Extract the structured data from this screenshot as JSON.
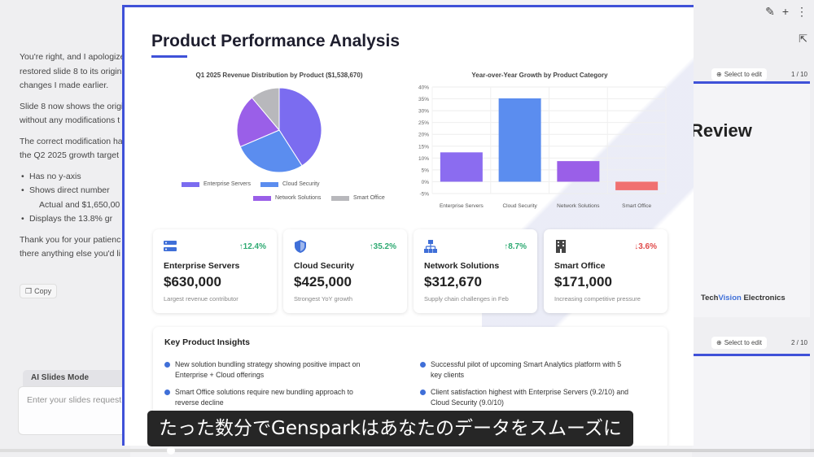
{
  "chat": {
    "lines": [
      "You're right, and I apologize",
      "restored slide 8 to its origin",
      "changes I made earlier.",
      "Slide 8 now shows the origi",
      "without any modifications t",
      "The correct modification ha",
      "the Q2 2025 growth target"
    ],
    "bullets": [
      "Has no y-axis",
      "Shows direct number",
      "Actual and $1,650,00",
      "Displays the 13.8% gr"
    ],
    "lines2": [
      "Thank you for your patienc",
      "there anything else you'd li"
    ],
    "copy_label": "Copy",
    "mode_label": "AI Slides Mode",
    "input_placeholder": "Enter your slides request"
  },
  "right_panel": {
    "select_label": "Select to edit",
    "slide1_counter": "1 / 10",
    "slide2_counter": "2 / 10",
    "slide1_title": "Review",
    "brand_a": "Tech",
    "brand_b": "Vision",
    "brand_c": " Electronics"
  },
  "slide": {
    "title": "Product Performance Analysis",
    "kpis": [
      {
        "name": "Enterprise Servers",
        "change": "12.4%",
        "direction": "up",
        "value": "$630,000",
        "sub": "Largest revenue contributor",
        "icon": "server-icon"
      },
      {
        "name": "Cloud Security",
        "change": "35.2%",
        "direction": "up",
        "value": "$425,000",
        "sub": "Strongest YoY growth",
        "icon": "shield-icon"
      },
      {
        "name": "Network Solutions",
        "change": "8.7%",
        "direction": "up",
        "value": "$312,670",
        "sub": "Supply chain challenges in Feb",
        "icon": "network-icon"
      },
      {
        "name": "Smart Office",
        "change": "3.6%",
        "direction": "down",
        "value": "$171,000",
        "sub": "Increasing competitive pressure",
        "icon": "building-icon"
      }
    ],
    "insights_title": "Key Product Insights",
    "insights": [
      [
        "New solution bundling strategy showing positive impact on",
        "Enterprise + Cloud offerings"
      ],
      [
        "Smart Office solutions require new bundling approach to",
        "reverse decline"
      ],
      [
        "Successful pilot of upcoming Smart Analytics platform with 5",
        "key clients"
      ],
      [
        "Client satisfaction highest with Enterprise Servers (9.2/10) and",
        "Cloud Security (9.0/10)"
      ]
    ]
  },
  "colors": {
    "accent": "#3f51d8",
    "up": "#2eaa72",
    "down": "#e04a4a"
  },
  "caption": "たった数分でGensparkはあなたのデータをスムーズに",
  "progress": 0.21,
  "chart_data": [
    {
      "type": "pie",
      "title": "Q1 2025 Revenue Distribution by Product ($1,538,670)",
      "categories": [
        "Enterprise Servers",
        "Cloud Security",
        "Network Solutions",
        "Smart Office"
      ],
      "values": [
        630000,
        425000,
        312670,
        171000
      ],
      "colors": [
        "#7b6cf0",
        "#5b8def",
        "#9a5fe8",
        "#b8b8bc"
      ],
      "legend": "bottom"
    },
    {
      "type": "bar",
      "title": "Year-over-Year Growth by Product Category",
      "categories": [
        "Enterprise Servers",
        "Cloud Security",
        "Network Solutions",
        "Smart Office"
      ],
      "values": [
        12.4,
        35.2,
        8.7,
        -3.6
      ],
      "colors": [
        "#8b6cf0",
        "#5b8def",
        "#9a5fe8",
        "#f07070"
      ],
      "ylim": [
        -5,
        40
      ],
      "yticks": [
        "40%",
        "35%",
        "30%",
        "25%",
        "20%",
        "15%",
        "10%",
        "5%",
        "0%",
        "-5%"
      ],
      "grid": true
    }
  ]
}
